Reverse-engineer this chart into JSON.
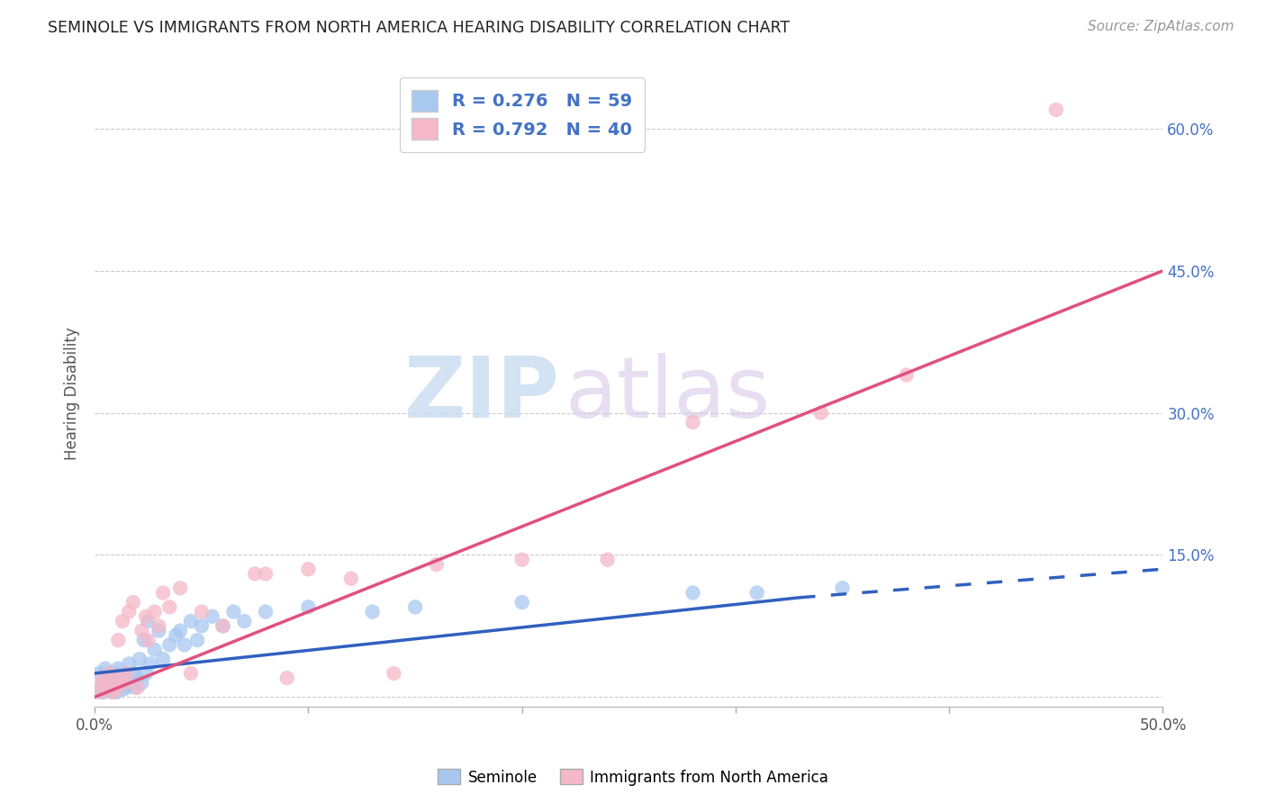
{
  "title": "SEMINOLE VS IMMIGRANTS FROM NORTH AMERICA HEARING DISABILITY CORRELATION CHART",
  "source": "Source: ZipAtlas.com",
  "ylabel": "Hearing Disability",
  "xlim": [
    0.0,
    0.5
  ],
  "ylim": [
    -0.01,
    0.65
  ],
  "blue_R": 0.276,
  "blue_N": 59,
  "pink_R": 0.792,
  "pink_N": 40,
  "blue_color": "#A8C8F0",
  "pink_color": "#F5B8C8",
  "blue_line_color": "#3060C0",
  "pink_line_color": "#E05080",
  "legend_label_blue": "Seminole",
  "legend_label_pink": "Immigrants from North America",
  "watermark_ZIP": "ZIP",
  "watermark_atlas": "atlas",
  "blue_scatter_x": [
    0.002,
    0.003,
    0.004,
    0.004,
    0.005,
    0.005,
    0.006,
    0.006,
    0.007,
    0.007,
    0.008,
    0.008,
    0.009,
    0.009,
    0.01,
    0.01,
    0.011,
    0.011,
    0.012,
    0.012,
    0.013,
    0.013,
    0.014,
    0.014,
    0.015,
    0.015,
    0.016,
    0.017,
    0.018,
    0.019,
    0.02,
    0.021,
    0.022,
    0.023,
    0.024,
    0.025,
    0.026,
    0.028,
    0.03,
    0.032,
    0.035,
    0.038,
    0.04,
    0.042,
    0.045,
    0.048,
    0.05,
    0.055,
    0.06,
    0.065,
    0.07,
    0.08,
    0.1,
    0.13,
    0.15,
    0.2,
    0.28,
    0.31,
    0.35
  ],
  "blue_scatter_y": [
    0.025,
    0.01,
    0.005,
    0.015,
    0.02,
    0.03,
    0.008,
    0.018,
    0.012,
    0.025,
    0.006,
    0.015,
    0.02,
    0.01,
    0.025,
    0.005,
    0.018,
    0.03,
    0.012,
    0.02,
    0.008,
    0.022,
    0.015,
    0.025,
    0.01,
    0.02,
    0.035,
    0.015,
    0.025,
    0.01,
    0.02,
    0.04,
    0.015,
    0.06,
    0.025,
    0.08,
    0.035,
    0.05,
    0.07,
    0.04,
    0.055,
    0.065,
    0.07,
    0.055,
    0.08,
    0.06,
    0.075,
    0.085,
    0.075,
    0.09,
    0.08,
    0.09,
    0.095,
    0.09,
    0.095,
    0.1,
    0.11,
    0.11,
    0.115
  ],
  "pink_scatter_x": [
    0.002,
    0.003,
    0.005,
    0.006,
    0.007,
    0.008,
    0.009,
    0.01,
    0.011,
    0.012,
    0.013,
    0.014,
    0.015,
    0.016,
    0.018,
    0.02,
    0.022,
    0.024,
    0.025,
    0.028,
    0.03,
    0.032,
    0.035,
    0.04,
    0.045,
    0.05,
    0.06,
    0.075,
    0.08,
    0.09,
    0.1,
    0.12,
    0.14,
    0.16,
    0.2,
    0.24,
    0.28,
    0.34,
    0.38,
    0.45
  ],
  "pink_scatter_y": [
    0.005,
    0.015,
    0.02,
    0.01,
    0.025,
    0.005,
    0.015,
    0.008,
    0.06,
    0.02,
    0.08,
    0.015,
    0.025,
    0.09,
    0.1,
    0.01,
    0.07,
    0.085,
    0.06,
    0.09,
    0.075,
    0.11,
    0.095,
    0.115,
    0.025,
    0.09,
    0.075,
    0.13,
    0.13,
    0.02,
    0.135,
    0.125,
    0.025,
    0.14,
    0.145,
    0.145,
    0.29,
    0.3,
    0.34,
    0.62
  ],
  "blue_line_x_start": 0.0,
  "blue_line_x_solid_end": 0.33,
  "blue_line_x_end": 0.5,
  "blue_line_y_start": 0.025,
  "blue_line_y_at_solid_end": 0.105,
  "blue_line_y_end": 0.135,
  "pink_line_x_start": 0.0,
  "pink_line_x_end": 0.5,
  "pink_line_y_start": 0.0,
  "pink_line_y_end": 0.45
}
